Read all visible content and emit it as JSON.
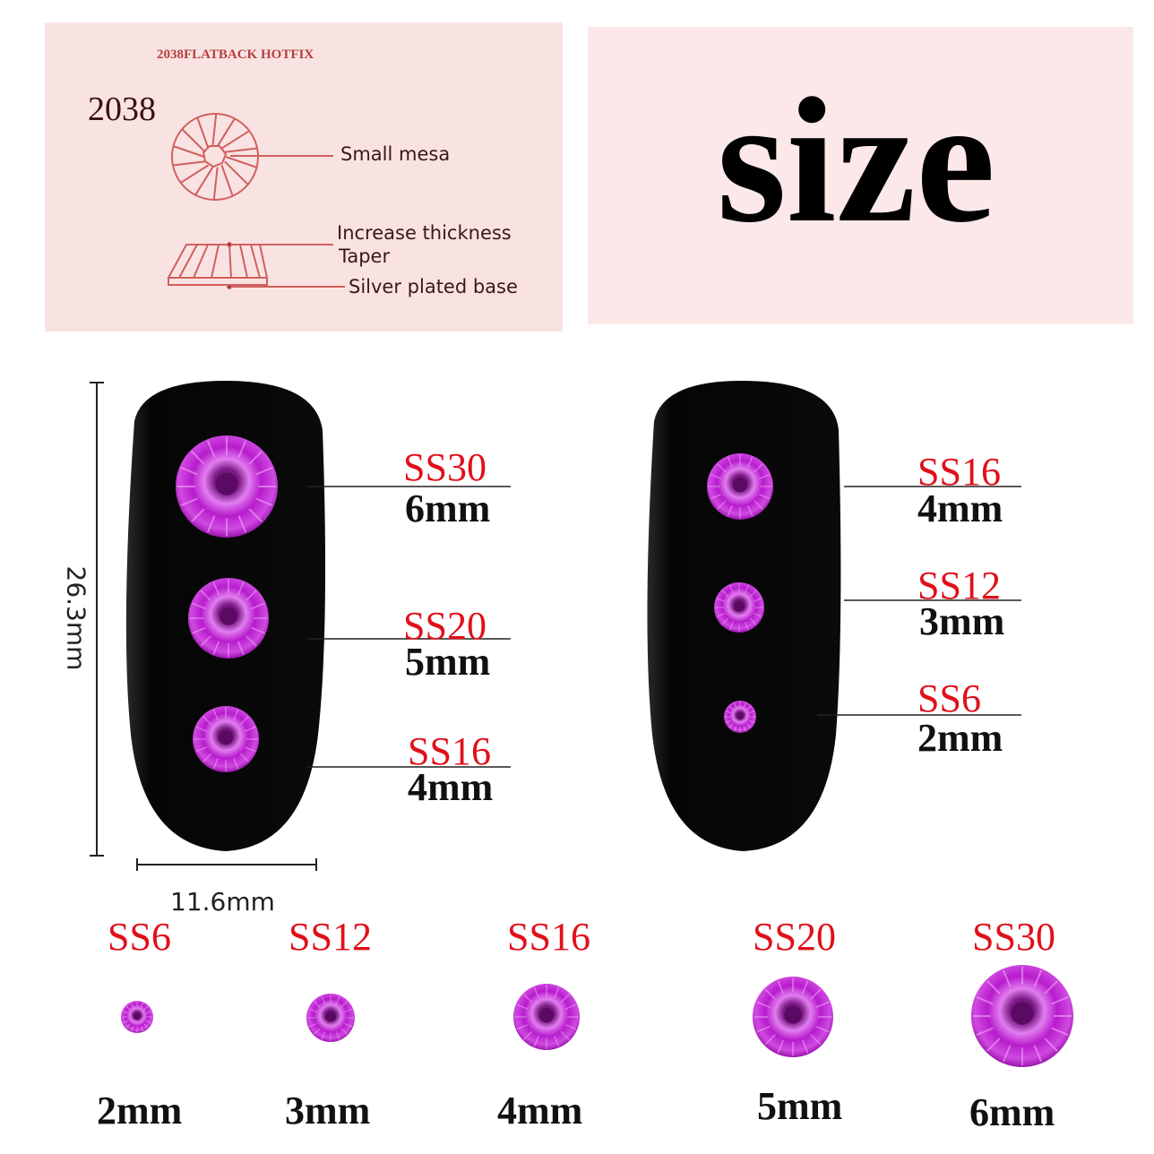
{
  "diagram_panel": {
    "header": "2038FLATBACK HOTFIX",
    "model": "2038",
    "labels": [
      "Small mesa",
      "Increase thickness",
      "Taper",
      "Silver plated base"
    ]
  },
  "title": "size",
  "dimensions": {
    "height": "26.3mm",
    "width": "11.6mm"
  },
  "left_nail": [
    {
      "code": "SS30",
      "size": "6mm"
    },
    {
      "code": "SS20",
      "size": "5mm"
    },
    {
      "code": "SS16",
      "size": "4mm"
    }
  ],
  "right_nail": [
    {
      "code": "SS16",
      "size": "4mm"
    },
    {
      "code": "SS12",
      "size": "3mm"
    },
    {
      "code": "SS6",
      "size": "2mm"
    }
  ],
  "size_row": [
    {
      "code": "SS6",
      "size": "2mm"
    },
    {
      "code": "SS12",
      "size": "3mm"
    },
    {
      "code": "SS16",
      "size": "4mm"
    },
    {
      "code": "SS20",
      "size": "5mm"
    },
    {
      "code": "SS30",
      "size": "6mm"
    }
  ],
  "colors": {
    "label_red": "#e0101a",
    "gem": "#c21fd2",
    "panel_pink": "#f9e3e2",
    "diagram_line": "#d0605e"
  }
}
